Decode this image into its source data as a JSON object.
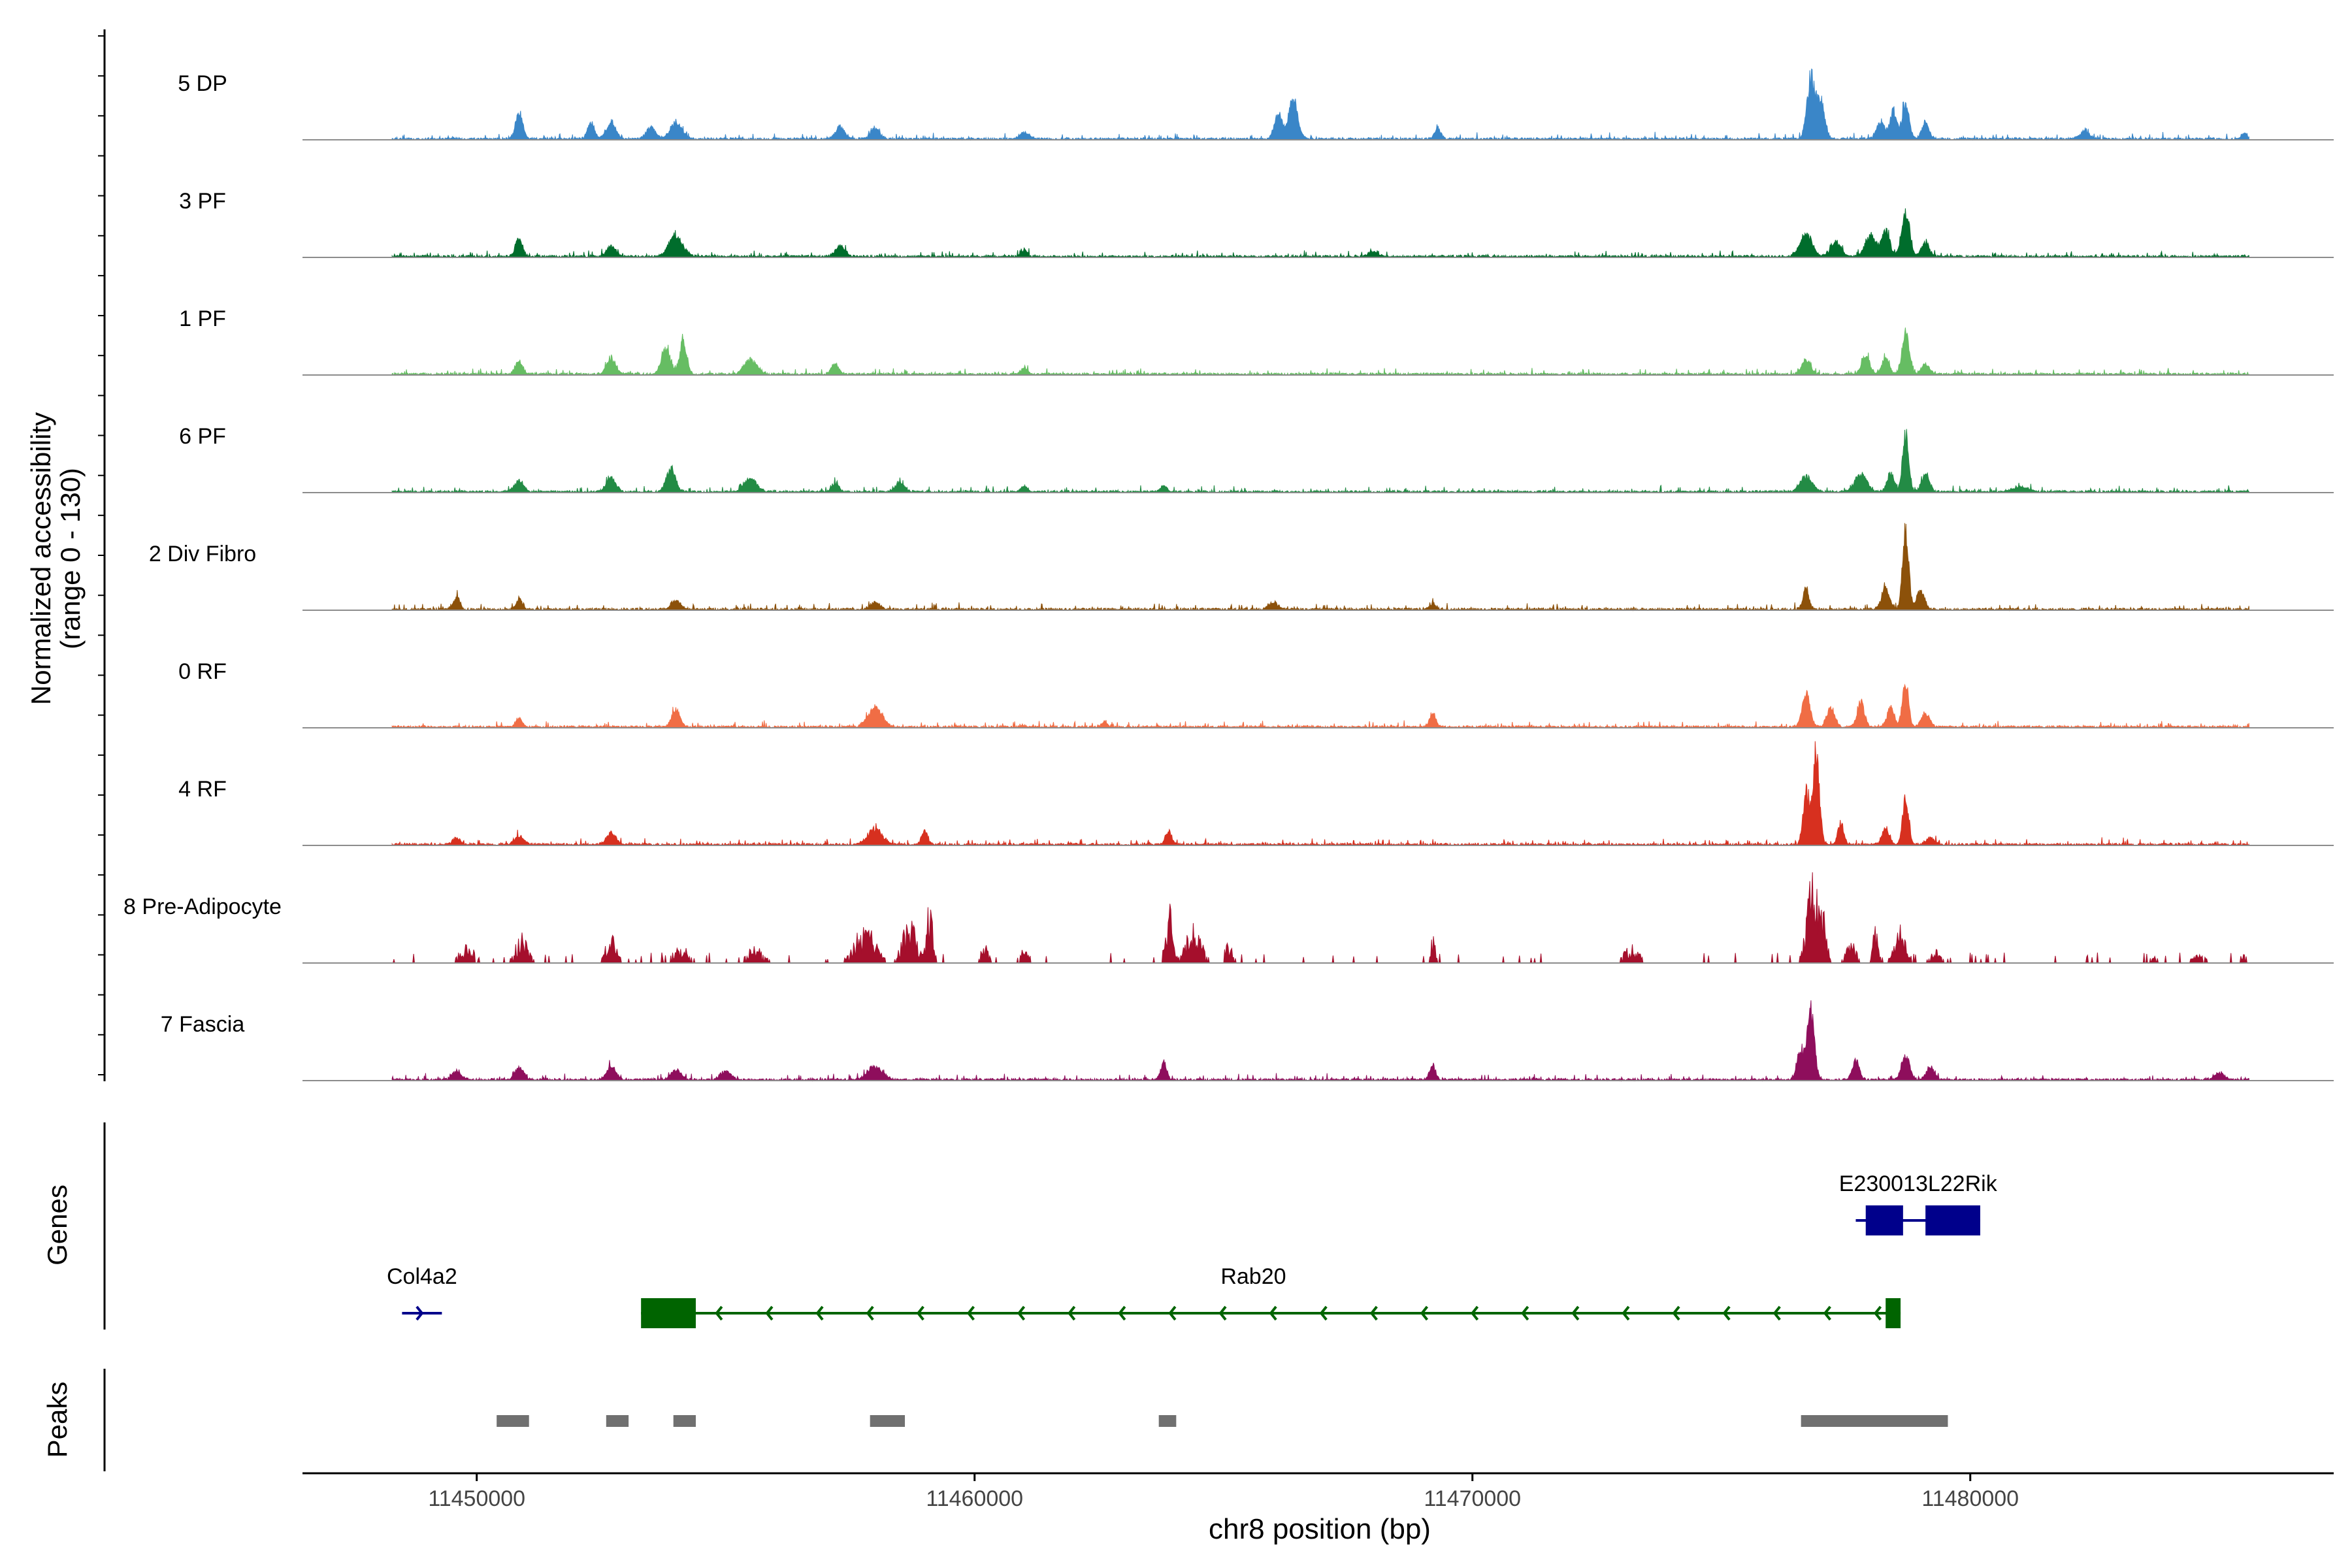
{
  "chart_data": {
    "type": "area",
    "title": "",
    "ylabel_line1": "Normalized accessibility",
    "ylabel_line2": "(range 0 - 130)",
    "ylim": [
      0,
      130
    ],
    "xlabel": "chr8 position (bp)",
    "xlim": [
      11446500,
      11487300
    ],
    "xticks": [
      11450000,
      11460000,
      11470000,
      11480000
    ],
    "xtick_labels": [
      "11450000",
      "11460000",
      "11470000",
      "11480000"
    ],
    "tracks": [
      {
        "name": "5 DP",
        "color": "#3a86c8",
        "peaks": [
          [
            11450850,
            30,
            70
          ],
          [
            11452300,
            18,
            70
          ],
          [
            11452700,
            20,
            90
          ],
          [
            11453500,
            14,
            90
          ],
          [
            11454000,
            18,
            120
          ],
          [
            11457300,
            14,
            90
          ],
          [
            11458000,
            12,
            90
          ],
          [
            11461000,
            8,
            90
          ],
          [
            11466100,
            28,
            80
          ],
          [
            11466400,
            45,
            90
          ],
          [
            11469300,
            12,
            60
          ],
          [
            11476800,
            68,
            80
          ],
          [
            11477000,
            42,
            80
          ],
          [
            11478200,
            18,
            80
          ],
          [
            11478700,
            42,
            70
          ],
          [
            11478450,
            30,
            70
          ],
          [
            11479100,
            20,
            70
          ],
          [
            11482300,
            8,
            100
          ],
          [
            11485500,
            6,
            60
          ]
        ]
      },
      {
        "name": "3 PF",
        "color": "#006d2c",
        "peaks": [
          [
            11450850,
            20,
            70
          ],
          [
            11452700,
            12,
            90
          ],
          [
            11454000,
            22,
            140
          ],
          [
            11457300,
            12,
            90
          ],
          [
            11461000,
            8,
            60
          ],
          [
            11468000,
            6,
            90
          ],
          [
            11476700,
            26,
            120
          ],
          [
            11477300,
            18,
            100
          ],
          [
            11478000,
            24,
            100
          ],
          [
            11478700,
            52,
            80
          ],
          [
            11478300,
            30,
            80
          ],
          [
            11479100,
            16,
            80
          ]
        ]
      },
      {
        "name": "1 PF",
        "color": "#66bd63",
        "peaks": [
          [
            11450850,
            14,
            70
          ],
          [
            11452700,
            18,
            90
          ],
          [
            11453800,
            28,
            90
          ],
          [
            11454150,
            38,
            70
          ],
          [
            11455500,
            18,
            120
          ],
          [
            11457200,
            12,
            70
          ],
          [
            11461000,
            8,
            60
          ],
          [
            11476700,
            16,
            90
          ],
          [
            11477900,
            20,
            80
          ],
          [
            11478300,
            20,
            70
          ],
          [
            11478700,
            46,
            70
          ],
          [
            11479100,
            12,
            80
          ]
        ]
      },
      {
        "name": "6 PF",
        "color": "#238b45",
        "peaks": [
          [
            11450850,
            12,
            90
          ],
          [
            11452700,
            16,
            90
          ],
          [
            11453900,
            28,
            90
          ],
          [
            11455500,
            16,
            120
          ],
          [
            11457200,
            10,
            70
          ],
          [
            11458500,
            10,
            90
          ],
          [
            11461000,
            6,
            60
          ],
          [
            11463800,
            8,
            60
          ],
          [
            11476700,
            18,
            120
          ],
          [
            11477800,
            20,
            120
          ],
          [
            11478700,
            65,
            60
          ],
          [
            11478400,
            22,
            70
          ],
          [
            11479100,
            18,
            80
          ],
          [
            11481000,
            6,
            150
          ]
        ]
      },
      {
        "name": "2 Div Fibro",
        "color": "#8c510a",
        "peaks": [
          [
            11449600,
            14,
            60
          ],
          [
            11450850,
            12,
            60
          ],
          [
            11454000,
            10,
            90
          ],
          [
            11458000,
            8,
            90
          ],
          [
            11466000,
            8,
            90
          ],
          [
            11469200,
            6,
            60
          ],
          [
            11476700,
            24,
            60
          ],
          [
            11478700,
            95,
            60
          ],
          [
            11478300,
            24,
            80
          ],
          [
            11479000,
            20,
            80
          ]
        ]
      },
      {
        "name": "0 RF",
        "color": "#f06d45",
        "peaks": [
          [
            11450850,
            10,
            70
          ],
          [
            11454000,
            20,
            80
          ],
          [
            11458000,
            22,
            140
          ],
          [
            11462600,
            6,
            60
          ],
          [
            11469200,
            16,
            60
          ],
          [
            11476700,
            38,
            80
          ],
          [
            11477200,
            22,
            80
          ],
          [
            11477800,
            30,
            70
          ],
          [
            11478700,
            52,
            60
          ],
          [
            11478400,
            22,
            70
          ],
          [
            11479100,
            16,
            80
          ]
        ]
      },
      {
        "name": "4 RF",
        "color": "#d7301f",
        "peaks": [
          [
            11449600,
            8,
            80
          ],
          [
            11450850,
            10,
            90
          ],
          [
            11452700,
            14,
            90
          ],
          [
            11458000,
            18,
            140
          ],
          [
            11459000,
            16,
            60
          ],
          [
            11463900,
            16,
            60
          ],
          [
            11476900,
            100,
            70
          ],
          [
            11476700,
            60,
            60
          ],
          [
            11477400,
            24,
            60
          ],
          [
            11478300,
            18,
            70
          ],
          [
            11478700,
            52,
            60
          ],
          [
            11479200,
            8,
            80
          ]
        ]
      },
      {
        "name": "8 Pre-Adipocyte",
        "color": "#a50f2c",
        "spiky": true,
        "peaks": [
          [
            11449800,
            18,
            160
          ],
          [
            11450900,
            28,
            120
          ],
          [
            11452700,
            28,
            110
          ],
          [
            11454100,
            18,
            160
          ],
          [
            11455600,
            18,
            160
          ],
          [
            11457800,
            40,
            200
          ],
          [
            11458700,
            45,
            140
          ],
          [
            11459100,
            60,
            60
          ],
          [
            11460200,
            18,
            80
          ],
          [
            11461000,
            14,
            100
          ],
          [
            11463900,
            60,
            70
          ],
          [
            11464400,
            38,
            150
          ],
          [
            11465100,
            20,
            80
          ],
          [
            11469200,
            28,
            50
          ],
          [
            11473200,
            18,
            150
          ],
          [
            11476800,
            80,
            100
          ],
          [
            11477000,
            55,
            100
          ],
          [
            11477600,
            24,
            100
          ],
          [
            11478100,
            40,
            50
          ],
          [
            11478600,
            36,
            120
          ],
          [
            11479300,
            14,
            100
          ],
          [
            11483700,
            8,
            80
          ],
          [
            11484600,
            8,
            150
          ],
          [
            11485500,
            10,
            50
          ]
        ]
      },
      {
        "name": "7 Fascia",
        "color": "#8e0e5c",
        "peaks": [
          [
            11449600,
            10,
            90
          ],
          [
            11450850,
            14,
            90
          ],
          [
            11452700,
            16,
            90
          ],
          [
            11454000,
            12,
            100
          ],
          [
            11455000,
            10,
            100
          ],
          [
            11458000,
            16,
            140
          ],
          [
            11463800,
            20,
            60
          ],
          [
            11469200,
            16,
            60
          ],
          [
            11476800,
            80,
            70
          ],
          [
            11476600,
            34,
            80
          ],
          [
            11477700,
            22,
            70
          ],
          [
            11478700,
            28,
            80
          ],
          [
            11479200,
            14,
            80
          ],
          [
            11485000,
            8,
            100
          ]
        ]
      }
    ],
    "genes_panel_label": "Genes",
    "genes": [
      {
        "name": "Col4a2",
        "color": "#00008b",
        "start": 11448500,
        "end": 11449300,
        "strand": "+",
        "row": 2,
        "exons": []
      },
      {
        "name": "Rab20",
        "color": "#006400",
        "start": 11453300,
        "end": 11478600,
        "strand": "-",
        "row": 2,
        "exons": [
          [
            11453300,
            11454400
          ],
          [
            11478300,
            11478600
          ]
        ]
      },
      {
        "name": "E230013L22Rik",
        "color": "#00008b",
        "start": 11477700,
        "end": 11480200,
        "strand": "+",
        "row": 1,
        "exons": [
          [
            11477900,
            11478650
          ],
          [
            11479100,
            11480200
          ]
        ]
      }
    ],
    "peaks_panel_label": "Peaks",
    "peak_regions": [
      [
        11450400,
        11451050
      ],
      [
        11452600,
        11453050
      ],
      [
        11453950,
        11454400
      ],
      [
        11457900,
        11458600
      ],
      [
        11463700,
        11464050
      ],
      [
        11476600,
        11479550
      ]
    ]
  }
}
